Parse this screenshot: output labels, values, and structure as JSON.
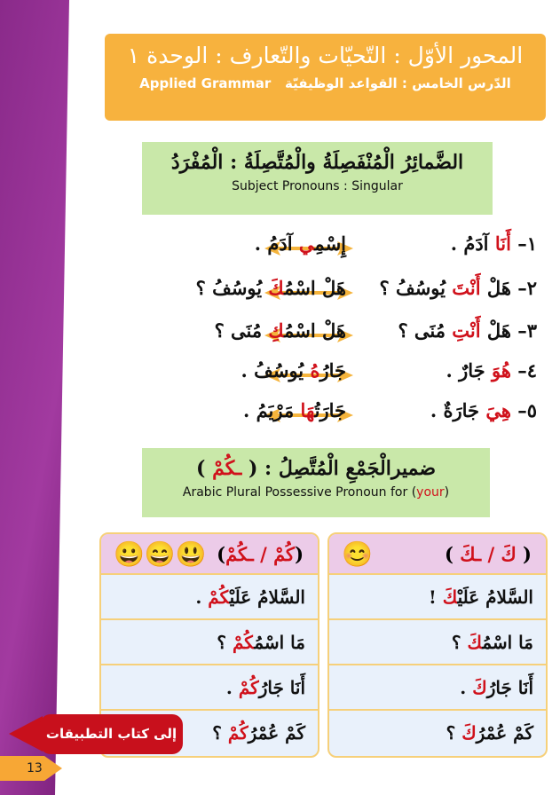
{
  "banner": {
    "title": "المحور الأوّل : التّحيّات والتّعارف : الوحدة ١",
    "subtitle_ar": "الدّرس الخامس : القواعد الوظيفيّة",
    "subtitle_en": "Applied Grammar"
  },
  "section1": {
    "title": "الضَّمائِرُ الْمُنْفَصِلَةُ والْمُتَّصِلَةُ : الْمُفْرَدُ",
    "subtitle": "Subject Pronouns : Singular"
  },
  "rows": [
    {
      "r": [
        "١– ",
        "أَنَا",
        " آدَمُ ."
      ],
      "l": [
        "إِسْمِ",
        "ي",
        " آدَمُ ."
      ]
    },
    {
      "r": [
        "٢– هَلْ ",
        "أَنْتَ",
        " يُوسُفُ ؟"
      ],
      "l": [
        "هَلْ اسْمُ",
        "كَ",
        " يُوسُفُ ؟"
      ]
    },
    {
      "r": [
        "٣– هَلْ ",
        "أَنْتِ",
        " مُنَى ؟"
      ],
      "l": [
        "هَلْ اسْمُ",
        "كِ",
        " مُنَى ؟"
      ]
    },
    {
      "r": [
        "٤– ",
        "هُوَ",
        " جَارٌ ."
      ],
      "l": [
        "جَارُ",
        "هُ",
        " يُوسُفُ ."
      ]
    },
    {
      "r": [
        "٥– ",
        "هِيَ",
        " جَارَةٌ ."
      ],
      "l": [
        "جَارَتُ",
        "هَا",
        " مَرْيَمُ ."
      ]
    }
  ],
  "section2": {
    "title_pre": "ضميرالْجَمْعِ الْمُتَّصِلُ : ( ",
    "title_red": "ـكُمْ",
    "title_post": " )",
    "subtitle_pre": "Arabic Plural Possessive Pronoun for (",
    "subtitle_red": "your",
    "subtitle_post": ")"
  },
  "singular": {
    "header_pre": "( ",
    "header_red": "كَ / ـكَ",
    "header_post": " )",
    "items": [
      [
        "السَّلامُ عَلَيْ",
        "كَ",
        " !"
      ],
      [
        "مَا اسْمُ",
        "كَ",
        " ؟"
      ],
      [
        "أَنَا جَارُ",
        "كَ",
        " ."
      ],
      [
        "كَمْ عُمْرُ",
        "كَ",
        " ؟"
      ]
    ]
  },
  "plural": {
    "header_pre": "(",
    "header_red": "كُمْ / ـكُمْ",
    "header_post": ")",
    "items": [
      [
        "السَّلامُ عَلَيْ",
        "كُمْ",
        " ."
      ],
      [
        "مَا اسْمُ",
        "كُمْ",
        " ؟"
      ],
      [
        "أَنَا جَارُ",
        "كُمْ",
        " ."
      ],
      [
        "كَمْ عُمْرُ",
        "كُمْ",
        " ؟"
      ]
    ]
  },
  "workbook_button": "إلى كتاب التطبيقات",
  "page_number": "13",
  "colors": {
    "accent_red": "#d0111b",
    "banner_orange": "#f7b23e",
    "box_green": "#c9e8a9",
    "arrow_orange": "#f5b43c"
  }
}
